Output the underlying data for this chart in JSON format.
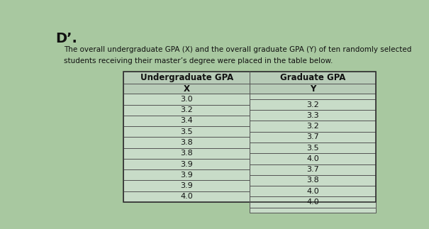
{
  "title_number": "Dʼ.",
  "description_line1": "The overall undergraduate GPA (X) and the overall graduate GPA (Y) of ten randomly selected",
  "description_line2": "students receiving their master’s degree were placed in the table below.",
  "col_header_left": "Undergraduate GPA",
  "col_header_right": "Graduate GPA",
  "col_subheader_left": "X",
  "col_subheader_right": "Y",
  "x_values": [
    "3.0",
    "3.2",
    "3.4",
    "3.5",
    "3.8",
    "3.8",
    "3.9",
    "3.9",
    "3.9",
    "4.0"
  ],
  "y_values": [
    "3.2",
    "3.3",
    "3.2",
    "3.7",
    "3.5",
    "4.0",
    "3.7",
    "3.8",
    "4.0",
    "4.0"
  ],
  "background_color": "#a8c8a0",
  "table_bg": "#c8dcc8",
  "header_bg": "#b8ccb8",
  "text_color": "#111111",
  "border_color": "#555555",
  "font_size_title": 14,
  "font_size_desc": 7.5,
  "font_size_header": 8.5,
  "font_size_table": 8.0
}
